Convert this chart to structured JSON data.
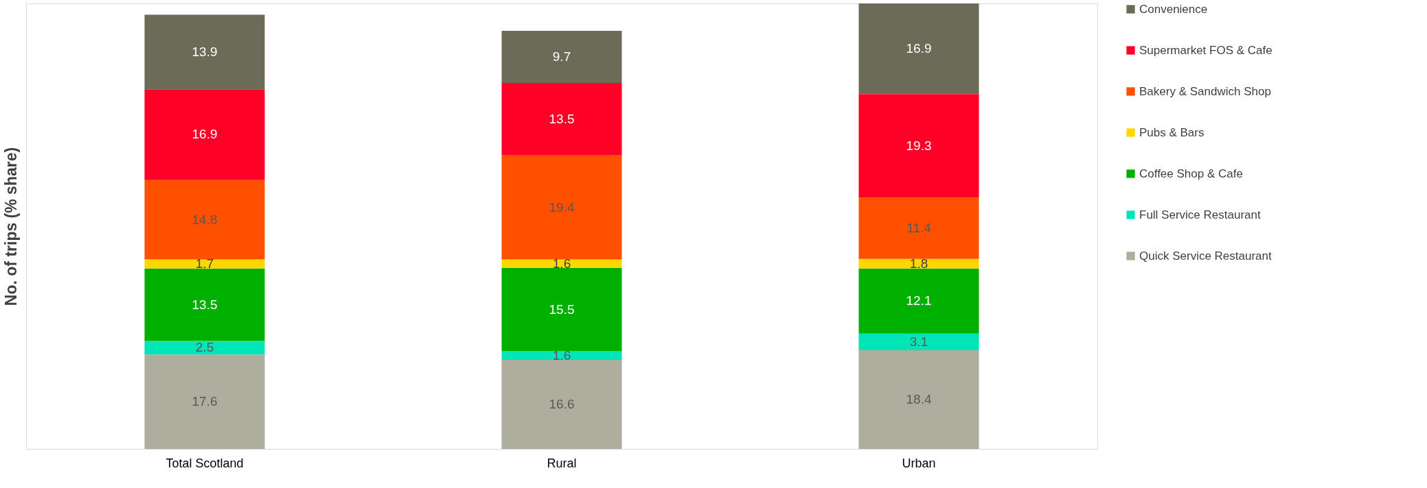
{
  "chart_data": {
    "type": "bar",
    "stacked": true,
    "ylabel": "No. of trips (% share)",
    "categories": [
      "Total Scotland",
      "Rural",
      "Urban"
    ],
    "data_labels": true,
    "legend": "right",
    "grid": false,
    "tick_labels": "x",
    "series": [
      {
        "name": "Quick Service Restaurant",
        "color": "#adae9d",
        "values": [
          17.6,
          16.6,
          18.4
        ]
      },
      {
        "name": "Full Service Restaurant",
        "color": "#00e5b8",
        "values": [
          2.5,
          1.6,
          3.1
        ]
      },
      {
        "name": "Coffee Shop & Cafe",
        "color": "#00b000",
        "values": [
          13.5,
          15.5,
          12.1
        ]
      },
      {
        "name": "Pubs & Bars",
        "color": "#ffd700",
        "values": [
          1.7,
          1.6,
          1.8
        ]
      },
      {
        "name": "Bakery & Sandwich Shop",
        "color": "#ff5000",
        "values": [
          14.8,
          19.4,
          11.4
        ]
      },
      {
        "name": "Supermarket FOS & Cafe",
        "color": "#ff0026",
        "values": [
          16.9,
          13.5,
          19.3
        ]
      },
      {
        "name": "Convenience",
        "color": "#6b6b58",
        "values": [
          13.9,
          9.7,
          16.9
        ]
      }
    ]
  }
}
